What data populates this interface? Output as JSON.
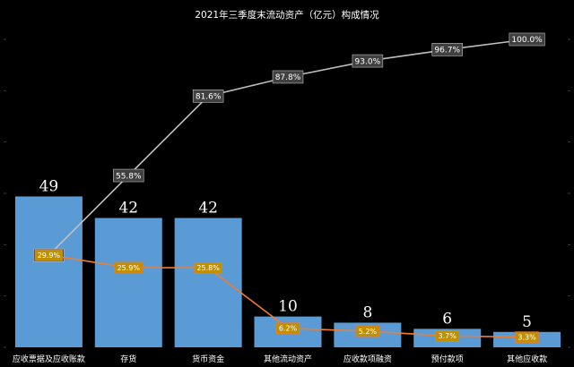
{
  "chart_data": {
    "type": "bar",
    "title": "2021年三季度末流动资产（亿元）构成情况",
    "categories": [
      "应收票据及应收账款",
      "存货",
      "货币资金",
      "其他流动资产",
      "应收款项融资",
      "预付款项",
      "其他应收款"
    ],
    "values": [
      49,
      42,
      42,
      10,
      8,
      6,
      5
    ],
    "value_labels": [
      "49",
      "42",
      "42",
      "10",
      "8",
      "6",
      "5"
    ],
    "lines": [
      {
        "type": "line",
        "values": [
          29.9,
          55.8,
          81.6,
          87.8,
          93.0,
          96.7,
          100.0
        ],
        "labels": [
          "29.9%",
          "55.8%",
          "81.6%",
          "87.8%",
          "93.0%",
          "96.7%",
          "100.0%"
        ],
        "color": "#bfbfbf"
      },
      {
        "type": "line",
        "values": [
          29.9,
          25.9,
          25.8,
          6.2,
          5.2,
          3.7,
          3.3
        ],
        "labels": [
          "29.9%",
          "25.9%",
          "25.8%",
          "6.2%",
          "5.2%",
          "3.7%",
          "3.3%"
        ],
        "color": "#ed7d31"
      }
    ],
    "ylim": [
      0,
      100
    ],
    "grid": false,
    "legend": "none",
    "colors": {
      "bar": "#5b9bd5",
      "cumulative_line": "#bfbfbf",
      "share_line": "#ed7d31",
      "share_label_bg": "#bf9000",
      "cumulative_label_bg": "#404040",
      "background": "#000000"
    }
  }
}
